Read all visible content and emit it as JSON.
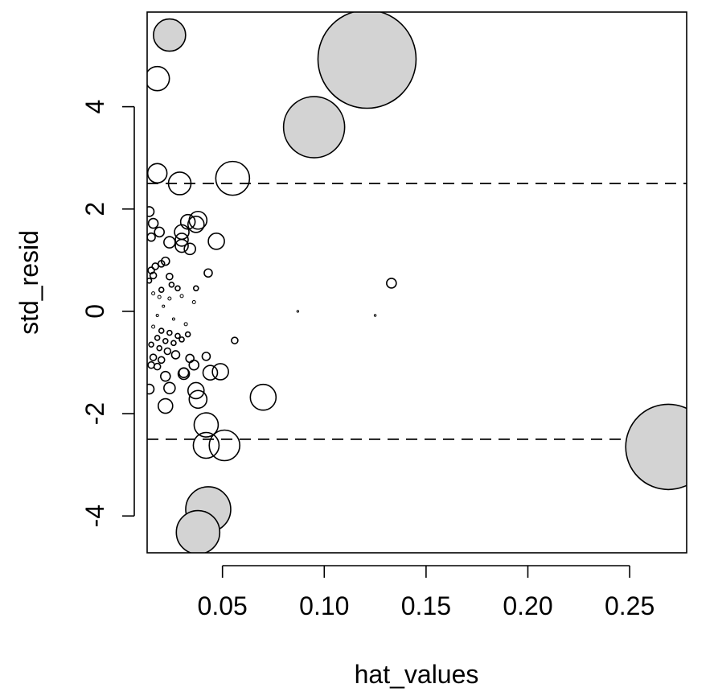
{
  "chart_data": {
    "type": "scatter",
    "title": "",
    "xlabel": "hat_values",
    "ylabel": "std_resid",
    "xlim": [
      0.013,
      0.278
    ],
    "ylim": [
      -4.72,
      5.85
    ],
    "x_ticks": [
      0.05,
      0.1,
      0.15,
      0.2,
      0.25
    ],
    "x_tick_labels": [
      "0.05",
      "0.10",
      "0.15",
      "0.20",
      "0.25"
    ],
    "y_ticks": [
      -4,
      -2,
      0,
      2,
      4
    ],
    "y_tick_labels": [
      "-4",
      "-2",
      "0",
      "2",
      "4"
    ],
    "reference_lines": [
      2.5,
      -2.5
    ],
    "reference_line_style": "dashed",
    "grid": false,
    "legend": "none",
    "marker": "circle",
    "marker_size_encodes": "influence",
    "colors": {
      "highlight_fill": "#d3d3d3",
      "normal_fill": "none",
      "stroke": "#000000"
    },
    "points": [
      {
        "x": 0.024,
        "y": 5.4,
        "size": 20,
        "highlight": true
      },
      {
        "x": 0.121,
        "y": 4.93,
        "size": 61,
        "highlight": true
      },
      {
        "x": 0.095,
        "y": 3.6,
        "size": 38,
        "highlight": true
      },
      {
        "x": 0.269,
        "y": -2.65,
        "size": 53,
        "highlight": true
      },
      {
        "x": 0.043,
        "y": -3.87,
        "size": 28,
        "highlight": true
      },
      {
        "x": 0.038,
        "y": -4.32,
        "size": 27,
        "highlight": true
      },
      {
        "x": 0.018,
        "y": 4.55,
        "size": 15,
        "highlight": false
      },
      {
        "x": 0.018,
        "y": 2.7,
        "size": 12,
        "highlight": false
      },
      {
        "x": 0.029,
        "y": 2.5,
        "size": 14,
        "highlight": false
      },
      {
        "x": 0.055,
        "y": 2.6,
        "size": 21,
        "highlight": false
      },
      {
        "x": 0.07,
        "y": -1.68,
        "size": 16,
        "highlight": false
      },
      {
        "x": 0.051,
        "y": -2.62,
        "size": 19,
        "highlight": false
      },
      {
        "x": 0.042,
        "y": -2.62,
        "size": 16,
        "highlight": false
      },
      {
        "x": 0.042,
        "y": -2.22,
        "size": 15,
        "highlight": false
      },
      {
        "x": 0.038,
        "y": -1.72,
        "size": 11,
        "highlight": false
      },
      {
        "x": 0.037,
        "y": -1.55,
        "size": 10,
        "highlight": false
      },
      {
        "x": 0.049,
        "y": -1.18,
        "size": 10,
        "highlight": false
      },
      {
        "x": 0.044,
        "y": -1.2,
        "size": 9,
        "highlight": false
      },
      {
        "x": 0.038,
        "y": 1.78,
        "size": 11,
        "highlight": false
      },
      {
        "x": 0.037,
        "y": 1.7,
        "size": 10,
        "highlight": false
      },
      {
        "x": 0.033,
        "y": 1.75,
        "size": 9,
        "highlight": false
      },
      {
        "x": 0.03,
        "y": 1.55,
        "size": 9,
        "highlight": false
      },
      {
        "x": 0.03,
        "y": 1.4,
        "size": 8,
        "highlight": false
      },
      {
        "x": 0.03,
        "y": 1.28,
        "size": 8,
        "highlight": false
      },
      {
        "x": 0.034,
        "y": 1.22,
        "size": 7,
        "highlight": false
      },
      {
        "x": 0.047,
        "y": 1.37,
        "size": 10,
        "highlight": false
      },
      {
        "x": 0.024,
        "y": 1.35,
        "size": 7,
        "highlight": false
      },
      {
        "x": 0.019,
        "y": 1.55,
        "size": 6,
        "highlight": false
      },
      {
        "x": 0.016,
        "y": 1.72,
        "size": 6,
        "highlight": false
      },
      {
        "x": 0.014,
        "y": 1.95,
        "size": 6,
        "highlight": false
      },
      {
        "x": 0.015,
        "y": 1.45,
        "size": 5,
        "highlight": false
      },
      {
        "x": 0.022,
        "y": -1.85,
        "size": 9,
        "highlight": false
      },
      {
        "x": 0.024,
        "y": -1.5,
        "size": 7,
        "highlight": false
      },
      {
        "x": 0.014,
        "y": -1.52,
        "size": 6,
        "highlight": false
      },
      {
        "x": 0.022,
        "y": -1.27,
        "size": 6,
        "highlight": false
      },
      {
        "x": 0.031,
        "y": -1.22,
        "size": 7,
        "highlight": false
      },
      {
        "x": 0.031,
        "y": -1.2,
        "size": 6,
        "highlight": false
      },
      {
        "x": 0.036,
        "y": -1.05,
        "size": 6,
        "highlight": false
      },
      {
        "x": 0.042,
        "y": -0.88,
        "size": 5,
        "highlight": false
      },
      {
        "x": 0.034,
        "y": -0.92,
        "size": 5,
        "highlight": false
      },
      {
        "x": 0.027,
        "y": -0.85,
        "size": 5,
        "highlight": false
      },
      {
        "x": 0.043,
        "y": 0.75,
        "size": 5,
        "highlight": false
      },
      {
        "x": 0.022,
        "y": 0.98,
        "size": 5,
        "highlight": false
      },
      {
        "x": 0.02,
        "y": 0.93,
        "size": 4,
        "highlight": false
      },
      {
        "x": 0.017,
        "y": 0.88,
        "size": 4,
        "highlight": false
      },
      {
        "x": 0.015,
        "y": 0.8,
        "size": 4,
        "highlight": false
      },
      {
        "x": 0.016,
        "y": 0.7,
        "size": 4,
        "highlight": false
      },
      {
        "x": 0.014,
        "y": 0.6,
        "size": 3,
        "highlight": false
      },
      {
        "x": 0.024,
        "y": 0.68,
        "size": 4,
        "highlight": false
      },
      {
        "x": 0.025,
        "y": 0.52,
        "size": 3,
        "highlight": false
      },
      {
        "x": 0.028,
        "y": 0.45,
        "size": 3,
        "highlight": false
      },
      {
        "x": 0.037,
        "y": 0.45,
        "size": 3,
        "highlight": false
      },
      {
        "x": 0.02,
        "y": 0.42,
        "size": 3,
        "highlight": false
      },
      {
        "x": 0.016,
        "y": 0.35,
        "size": 2,
        "highlight": false
      },
      {
        "x": 0.019,
        "y": 0.28,
        "size": 2,
        "highlight": false
      },
      {
        "x": 0.024,
        "y": 0.25,
        "size": 2,
        "highlight": false
      },
      {
        "x": 0.03,
        "y": 0.3,
        "size": 2,
        "highlight": false
      },
      {
        "x": 0.036,
        "y": 0.18,
        "size": 2,
        "highlight": false
      },
      {
        "x": 0.021,
        "y": 0.1,
        "size": 1.5,
        "highlight": false
      },
      {
        "x": 0.018,
        "y": -0.08,
        "size": 1.5,
        "highlight": false
      },
      {
        "x": 0.026,
        "y": -0.15,
        "size": 1.5,
        "highlight": false
      },
      {
        "x": 0.032,
        "y": -0.25,
        "size": 2,
        "highlight": false
      },
      {
        "x": 0.016,
        "y": -0.3,
        "size": 2,
        "highlight": false
      },
      {
        "x": 0.02,
        "y": -0.38,
        "size": 3,
        "highlight": false
      },
      {
        "x": 0.024,
        "y": -0.42,
        "size": 3,
        "highlight": false
      },
      {
        "x": 0.028,
        "y": -0.48,
        "size": 3,
        "highlight": false
      },
      {
        "x": 0.018,
        "y": -0.52,
        "size": 3,
        "highlight": false
      },
      {
        "x": 0.022,
        "y": -0.58,
        "size": 3,
        "highlight": false
      },
      {
        "x": 0.026,
        "y": -0.62,
        "size": 3,
        "highlight": false
      },
      {
        "x": 0.03,
        "y": -0.55,
        "size": 3,
        "highlight": false
      },
      {
        "x": 0.033,
        "y": -0.45,
        "size": 3,
        "highlight": false
      },
      {
        "x": 0.015,
        "y": -0.65,
        "size": 3,
        "highlight": false
      },
      {
        "x": 0.019,
        "y": -0.72,
        "size": 3,
        "highlight": false
      },
      {
        "x": 0.023,
        "y": -0.78,
        "size": 4,
        "highlight": false
      },
      {
        "x": 0.016,
        "y": -0.9,
        "size": 4,
        "highlight": false
      },
      {
        "x": 0.02,
        "y": -0.95,
        "size": 4,
        "highlight": false
      },
      {
        "x": 0.015,
        "y": -1.05,
        "size": 4,
        "highlight": false
      },
      {
        "x": 0.018,
        "y": -1.08,
        "size": 4,
        "highlight": false
      },
      {
        "x": 0.056,
        "y": -0.57,
        "size": 4,
        "highlight": false
      },
      {
        "x": 0.133,
        "y": 0.55,
        "size": 6,
        "highlight": false
      },
      {
        "x": 0.087,
        "y": 0.0,
        "size": 1.2,
        "highlight": false
      },
      {
        "x": 0.125,
        "y": -0.08,
        "size": 1.2,
        "highlight": false
      }
    ]
  }
}
